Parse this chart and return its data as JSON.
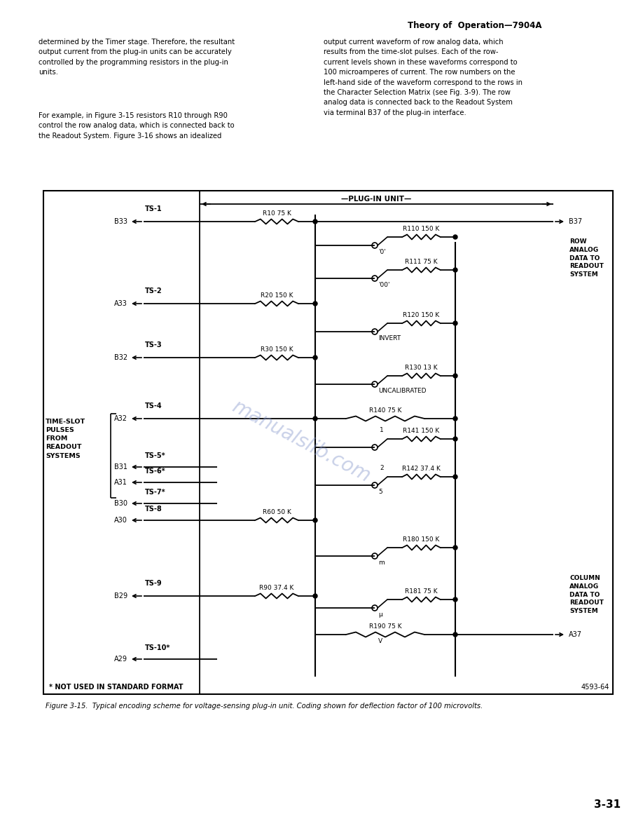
{
  "page_title": "Theory of  Operation—7904A",
  "left_para1": "determined by the Timer stage. Therefore, the resultant\noutput current from the plug-in units can be accurately\ncontrolled by the programming resistors in the plug-in\nunits.",
  "left_para2": "For example, in Figure 3-15 resistors R10 through R90\ncontrol the row analog data, which is connected back to\nthe Readout System. Figure 3-16 shows an idealized",
  "right_para1": "output current waveform of row analog data, which\nresults from the time-slot pulses. Each of the row-\ncurrent levels shown in these waveforms correspond to\n100 microamperes of current. The row numbers on the\nleft-hand side of the waveform correspond to the rows in\nthe Character Selection Matrix (see Fig. 3-9). The row\nanalog data is connected back to the Readout System\nvia terminal B37 of the plug-in interface.",
  "figure_caption": "Figure 3-15.  Typical encoding scheme for voltage-sensing plug-in unit. Coding shown for deflection factor of 100 microvolts.",
  "page_number": "3-31",
  "diagram_note": "* NOT USED IN STANDARD FORMAT",
  "diagram_ref": "4593-64",
  "bg_color": "#ffffff",
  "text_color": "#000000",
  "watermark_color": "#8899cc",
  "watermark_text": "manualslib.com"
}
